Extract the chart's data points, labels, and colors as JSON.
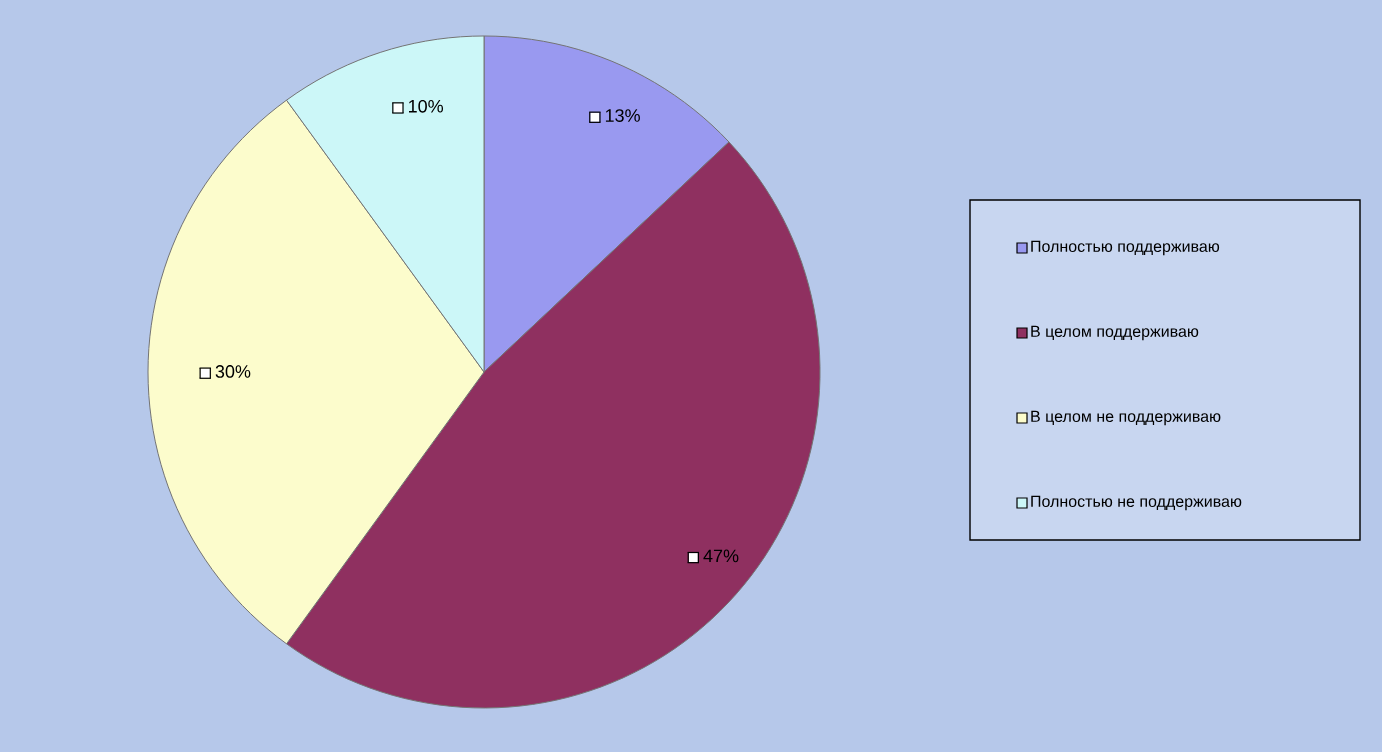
{
  "chart_data": {
    "type": "pie",
    "categories": [
      "Полностью поддерживаю",
      "В целом поддерживаю",
      "В целом не поддерживаю",
      "Полностью не поддерживаю"
    ],
    "values": [
      13,
      47,
      30,
      10
    ],
    "value_labels": [
      "13%",
      "47%",
      "30%",
      "10%"
    ],
    "colors": [
      "#9999f0",
      "#8f3060",
      "#fcfccc",
      "#ccf7f8"
    ],
    "legend": "right"
  }
}
